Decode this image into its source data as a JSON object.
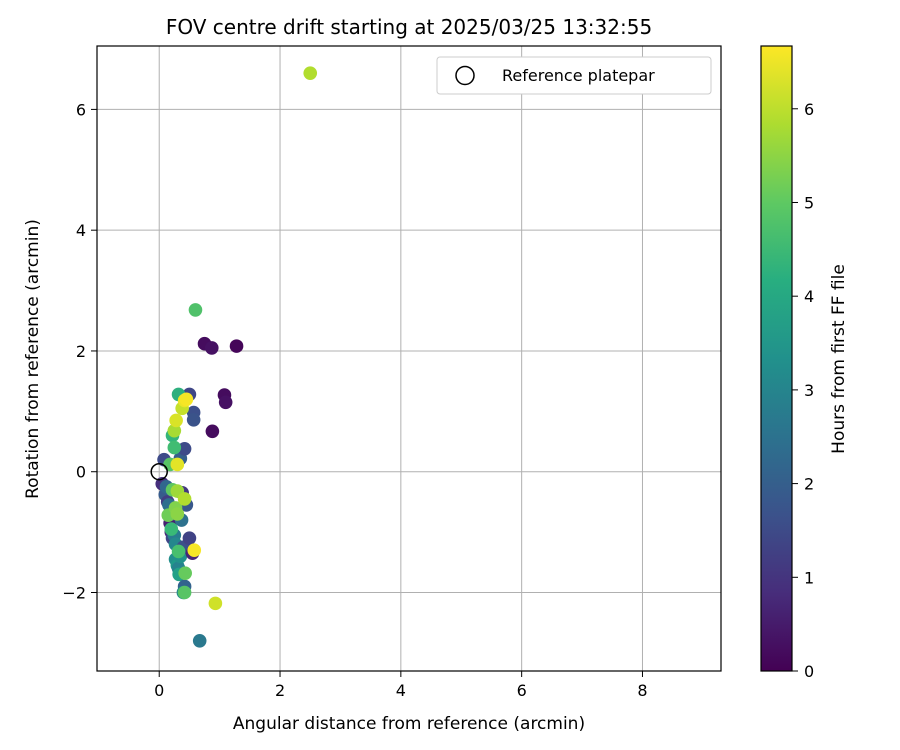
{
  "chart_data": {
    "type": "scatter",
    "title": "FOV centre drift starting at 2025/03/25 13:32:55",
    "xlabel": "Angular distance from reference (arcmin)",
    "ylabel": "Rotation from reference (arcmin)",
    "xlim": [
      -1.03,
      9.3
    ],
    "ylim": [
      -3.3,
      7.05
    ],
    "xticks": [
      0,
      2,
      4,
      6,
      8
    ],
    "xtick_labels": [
      "0",
      "2",
      "4",
      "6",
      "8"
    ],
    "yticks": [
      -2,
      0,
      2,
      4,
      6
    ],
    "ytick_labels": [
      "−2",
      "0",
      "2",
      "4",
      "6"
    ],
    "grid": true,
    "legend": {
      "position": "top-right",
      "entries": [
        "Reference platepar"
      ]
    },
    "colorbar": {
      "label": "Hours from first FF file",
      "colormap": "viridis",
      "range": [
        0,
        6.67
      ],
      "ticks": [
        0,
        1,
        2,
        3,
        4,
        5,
        6
      ],
      "tick_labels": [
        "0",
        "1",
        "2",
        "3",
        "4",
        "5",
        "6"
      ]
    },
    "reference_point": {
      "name": "Reference platepar",
      "x": 0,
      "y": 0
    },
    "points": [
      {
        "x": 0.05,
        "y": -0.2,
        "c": 0.9
      },
      {
        "x": 0.08,
        "y": 0.2,
        "c": 1.5
      },
      {
        "x": 0.1,
        "y": -0.38,
        "c": 1.9
      },
      {
        "x": 0.12,
        "y": -0.25,
        "c": 2.2
      },
      {
        "x": 0.14,
        "y": -0.5,
        "c": 1.2
      },
      {
        "x": 0.16,
        "y": -0.55,
        "c": 2.4
      },
      {
        "x": 0.18,
        "y": -0.85,
        "c": 0.6
      },
      {
        "x": 0.2,
        "y": -1.0,
        "c": 0.8
      },
      {
        "x": 0.22,
        "y": -1.1,
        "c": 1.4
      },
      {
        "x": 0.2,
        "y": -0.7,
        "c": 1.7
      },
      {
        "x": 0.25,
        "y": -1.05,
        "c": 2.8
      },
      {
        "x": 0.27,
        "y": -1.2,
        "c": 3.1
      },
      {
        "x": 0.27,
        "y": -1.45,
        "c": 3.3
      },
      {
        "x": 0.3,
        "y": -1.55,
        "c": 3.6
      },
      {
        "x": 0.32,
        "y": -1.6,
        "c": 3.0
      },
      {
        "x": 0.33,
        "y": -1.7,
        "c": 3.8
      },
      {
        "x": 0.35,
        "y": -1.4,
        "c": 3.4
      },
      {
        "x": 0.37,
        "y": -0.8,
        "c": 2.5
      },
      {
        "x": 0.38,
        "y": -0.35,
        "c": 1.1
      },
      {
        "x": 0.4,
        "y": -1.25,
        "c": 1.6
      },
      {
        "x": 0.42,
        "y": -1.9,
        "c": 2.1
      },
      {
        "x": 0.4,
        "y": -2.0,
        "c": 3.2
      },
      {
        "x": 0.45,
        "y": -0.55,
        "c": 1.8
      },
      {
        "x": 0.5,
        "y": -1.1,
        "c": 1.3
      },
      {
        "x": 0.55,
        "y": -1.35,
        "c": 0.7
      },
      {
        "x": 0.67,
        "y": -2.8,
        "c": 2.7
      },
      {
        "x": 0.35,
        "y": 0.22,
        "c": 2.0
      },
      {
        "x": 0.42,
        "y": 0.38,
        "c": 1.5
      },
      {
        "x": 0.5,
        "y": 1.28,
        "c": 1.4
      },
      {
        "x": 0.57,
        "y": 0.98,
        "c": 1.6
      },
      {
        "x": 0.57,
        "y": 0.86,
        "c": 1.7
      },
      {
        "x": 0.75,
        "y": 2.12,
        "c": 0.2
      },
      {
        "x": 0.87,
        "y": 2.05,
        "c": 0.3
      },
      {
        "x": 1.28,
        "y": 2.08,
        "c": 0.1
      },
      {
        "x": 1.08,
        "y": 1.27,
        "c": 0.2
      },
      {
        "x": 1.1,
        "y": 1.15,
        "c": 0.3
      },
      {
        "x": 0.88,
        "y": 0.67,
        "c": 0.2
      },
      {
        "x": 0.6,
        "y": 2.68,
        "c": 4.8
      },
      {
        "x": 0.32,
        "y": 1.28,
        "c": 4.2
      },
      {
        "x": 0.22,
        "y": 0.6,
        "c": 4.4
      },
      {
        "x": 0.25,
        "y": 0.4,
        "c": 4.6
      },
      {
        "x": 0.18,
        "y": 0.12,
        "c": 4.9
      },
      {
        "x": 0.22,
        "y": -0.3,
        "c": 5.0
      },
      {
        "x": 0.15,
        "y": -0.72,
        "c": 5.2
      },
      {
        "x": 0.2,
        "y": -0.95,
        "c": 4.5
      },
      {
        "x": 0.32,
        "y": -1.32,
        "c": 4.7
      },
      {
        "x": 0.27,
        "y": -0.6,
        "c": 5.4
      },
      {
        "x": 0.3,
        "y": -0.7,
        "c": 5.5
      },
      {
        "x": 0.43,
        "y": -1.68,
        "c": 5.1
      },
      {
        "x": 0.42,
        "y": -2.0,
        "c": 4.9
      },
      {
        "x": 0.3,
        "y": -0.32,
        "c": 5.7
      },
      {
        "x": 0.42,
        "y": -0.45,
        "c": 5.9
      },
      {
        "x": 0.25,
        "y": 0.68,
        "c": 5.8
      },
      {
        "x": 0.38,
        "y": 1.05,
        "c": 6.1
      },
      {
        "x": 0.28,
        "y": 0.85,
        "c": 6.3
      },
      {
        "x": 0.42,
        "y": 1.18,
        "c": 6.5
      },
      {
        "x": 0.45,
        "y": 1.2,
        "c": 6.6
      },
      {
        "x": 0.3,
        "y": 0.12,
        "c": 6.4
      },
      {
        "x": 0.58,
        "y": -1.3,
        "c": 6.6
      },
      {
        "x": 0.93,
        "y": -2.18,
        "c": 6.2
      },
      {
        "x": 2.5,
        "y": 6.6,
        "c": 5.9
      }
    ]
  }
}
